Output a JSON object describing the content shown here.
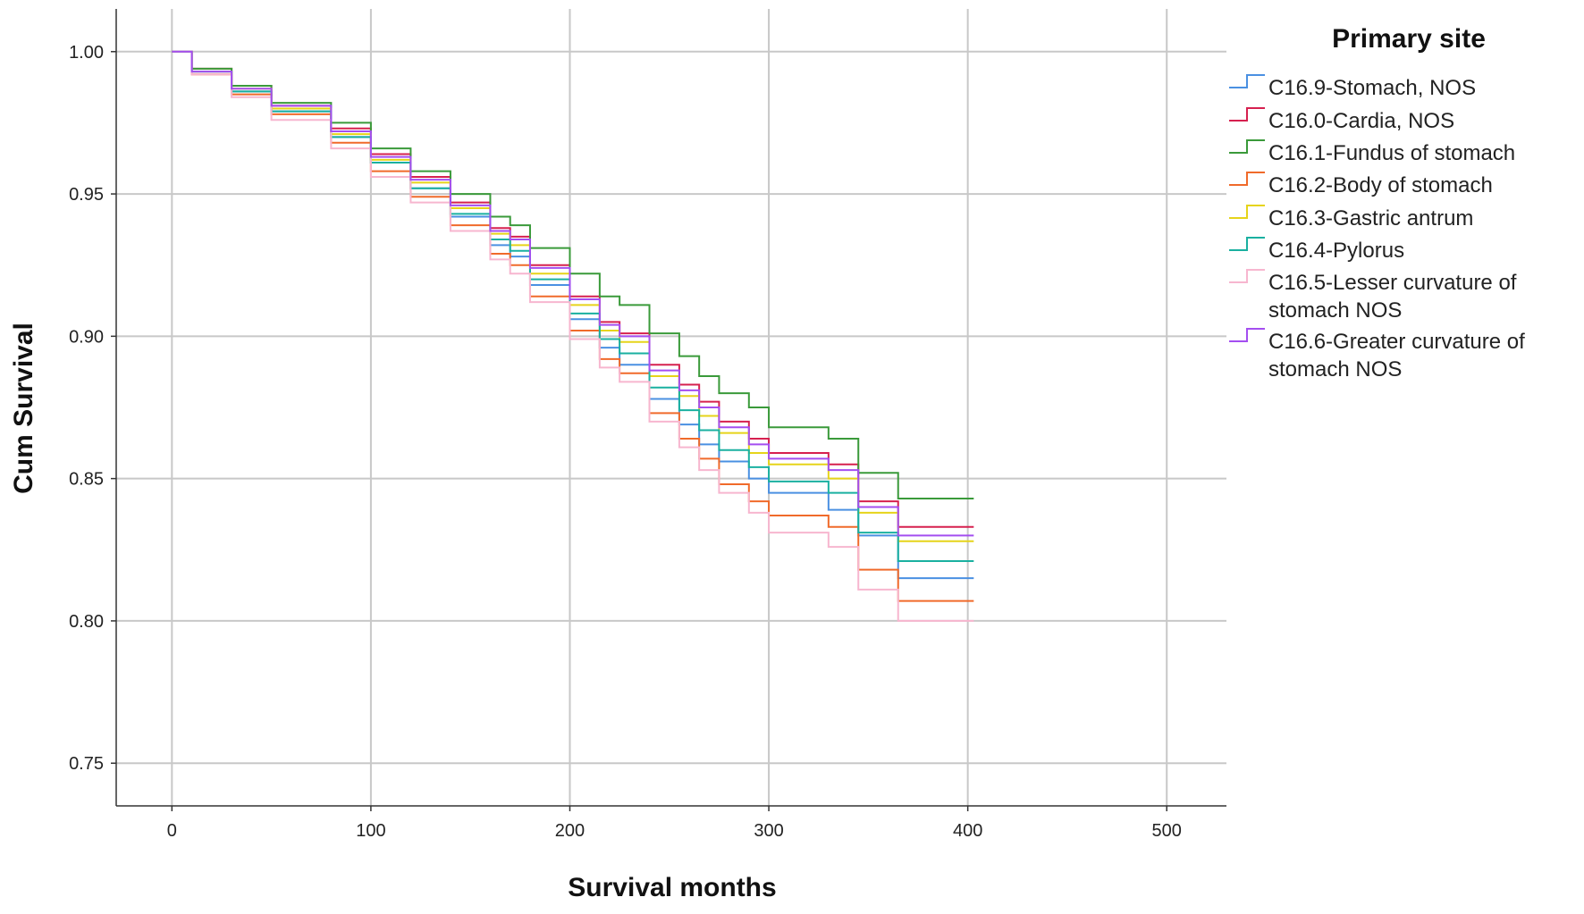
{
  "chart_data": {
    "type": "line",
    "title": "",
    "xlabel": "Survival months",
    "ylabel": "Cum Survival",
    "xlim": [
      -28,
      530
    ],
    "ylim": [
      0.735,
      1.015
    ],
    "x_ticks": [
      0,
      100,
      200,
      300,
      400,
      500
    ],
    "y_ticks": [
      0.75,
      0.8,
      0.85,
      0.9,
      0.95,
      1.0
    ],
    "x_tick_labels": [
      "0",
      "100",
      "200",
      "300",
      "400",
      "500"
    ],
    "y_tick_labels": [
      "0.75",
      "0.80",
      "0.85",
      "0.90",
      "0.95",
      "1.00"
    ],
    "grid": true,
    "step": true,
    "legend_title": "Primary site",
    "legend_position": "right",
    "series": [
      {
        "name": "C16.9-Stomach, NOS",
        "color": "#4a90e2",
        "x": [
          0,
          10,
          30,
          50,
          80,
          100,
          120,
          140,
          160,
          170,
          180,
          200,
          215,
          225,
          240,
          255,
          265,
          275,
          290,
          300,
          330,
          345,
          365,
          403
        ],
        "y": [
          1.0,
          0.993,
          0.986,
          0.979,
          0.97,
          0.961,
          0.952,
          0.942,
          0.932,
          0.928,
          0.918,
          0.906,
          0.896,
          0.89,
          0.878,
          0.869,
          0.862,
          0.856,
          0.85,
          0.845,
          0.839,
          0.83,
          0.815,
          0.815
        ]
      },
      {
        "name": "C16.0-Cardia, NOS",
        "color": "#d6204f",
        "x": [
          0,
          10,
          30,
          50,
          80,
          100,
          120,
          140,
          160,
          170,
          180,
          200,
          215,
          225,
          240,
          255,
          265,
          275,
          290,
          300,
          330,
          345,
          365,
          403
        ],
        "y": [
          1.0,
          0.994,
          0.988,
          0.981,
          0.973,
          0.964,
          0.956,
          0.947,
          0.938,
          0.935,
          0.925,
          0.914,
          0.905,
          0.901,
          0.89,
          0.883,
          0.877,
          0.87,
          0.864,
          0.859,
          0.855,
          0.842,
          0.833,
          0.833
        ]
      },
      {
        "name": "C16.1-Fundus of stomach",
        "color": "#3a9a3a",
        "x": [
          0,
          10,
          30,
          50,
          80,
          100,
          120,
          140,
          160,
          170,
          180,
          200,
          215,
          225,
          240,
          255,
          265,
          275,
          290,
          300,
          330,
          345,
          365,
          403
        ],
        "y": [
          1.0,
          0.994,
          0.988,
          0.982,
          0.975,
          0.966,
          0.958,
          0.95,
          0.942,
          0.939,
          0.931,
          0.922,
          0.914,
          0.911,
          0.901,
          0.893,
          0.886,
          0.88,
          0.875,
          0.868,
          0.864,
          0.852,
          0.843,
          0.843
        ]
      },
      {
        "name": "C16.2-Body of stomach",
        "color": "#f06a2a",
        "x": [
          0,
          10,
          30,
          50,
          80,
          100,
          120,
          140,
          160,
          170,
          180,
          200,
          215,
          225,
          240,
          255,
          265,
          275,
          290,
          300,
          330,
          345,
          365,
          403
        ],
        "y": [
          1.0,
          0.992,
          0.985,
          0.978,
          0.968,
          0.958,
          0.949,
          0.939,
          0.929,
          0.925,
          0.914,
          0.902,
          0.892,
          0.887,
          0.873,
          0.864,
          0.857,
          0.848,
          0.842,
          0.837,
          0.833,
          0.818,
          0.807,
          0.807
        ]
      },
      {
        "name": "C16.3-Gastric antrum",
        "color": "#e6d41a",
        "x": [
          0,
          10,
          30,
          50,
          80,
          100,
          120,
          140,
          160,
          170,
          180,
          200,
          215,
          225,
          240,
          255,
          265,
          275,
          290,
          300,
          330,
          345,
          365,
          403
        ],
        "y": [
          1.0,
          0.993,
          0.987,
          0.98,
          0.971,
          0.962,
          0.954,
          0.945,
          0.936,
          0.932,
          0.922,
          0.911,
          0.902,
          0.898,
          0.886,
          0.879,
          0.872,
          0.866,
          0.859,
          0.855,
          0.85,
          0.838,
          0.828,
          0.828
        ]
      },
      {
        "name": "C16.4-Pylorus",
        "color": "#1ab0a0",
        "x": [
          0,
          10,
          30,
          50,
          80,
          100,
          120,
          140,
          160,
          170,
          180,
          200,
          215,
          225,
          240,
          255,
          265,
          275,
          290,
          300,
          330,
          345,
          365,
          403
        ],
        "y": [
          1.0,
          0.993,
          0.986,
          0.979,
          0.97,
          0.961,
          0.952,
          0.943,
          0.934,
          0.93,
          0.92,
          0.908,
          0.899,
          0.894,
          0.882,
          0.874,
          0.867,
          0.86,
          0.854,
          0.849,
          0.845,
          0.831,
          0.821,
          0.821
        ]
      },
      {
        "name": "C16.5-Lesser curvature of stomach NOS",
        "color": "#f7b6cf",
        "x": [
          0,
          10,
          30,
          50,
          80,
          100,
          120,
          140,
          160,
          170,
          180,
          200,
          215,
          225,
          240,
          255,
          265,
          275,
          290,
          300,
          330,
          345,
          365,
          403
        ],
        "y": [
          1.0,
          0.992,
          0.984,
          0.976,
          0.966,
          0.956,
          0.947,
          0.937,
          0.927,
          0.922,
          0.912,
          0.899,
          0.889,
          0.884,
          0.87,
          0.861,
          0.853,
          0.845,
          0.838,
          0.831,
          0.826,
          0.811,
          0.8,
          0.8
        ]
      },
      {
        "name": "C16.6-Greater curvature of stomach NOS",
        "color": "#a44ef0",
        "x": [
          0,
          10,
          30,
          50,
          80,
          100,
          120,
          140,
          160,
          170,
          180,
          200,
          215,
          225,
          240,
          255,
          265,
          275,
          290,
          300,
          330,
          345,
          365,
          403
        ],
        "y": [
          1.0,
          0.993,
          0.987,
          0.981,
          0.972,
          0.963,
          0.955,
          0.946,
          0.937,
          0.934,
          0.924,
          0.913,
          0.904,
          0.9,
          0.888,
          0.881,
          0.875,
          0.868,
          0.862,
          0.857,
          0.853,
          0.84,
          0.83,
          0.83
        ]
      }
    ],
    "legend_labels": [
      [
        "C16.9-Stomach, NOS"
      ],
      [
        "C16.0-Cardia, NOS"
      ],
      [
        "C16.1-Fundus of stomach"
      ],
      [
        "C16.2-Body of stomach"
      ],
      [
        "C16.3-Gastric antrum"
      ],
      [
        "C16.4-Pylorus"
      ],
      [
        "C16.5-Lesser curvature of",
        "stomach NOS"
      ],
      [
        "C16.6-Greater curvature of",
        "stomach NOS"
      ]
    ]
  }
}
